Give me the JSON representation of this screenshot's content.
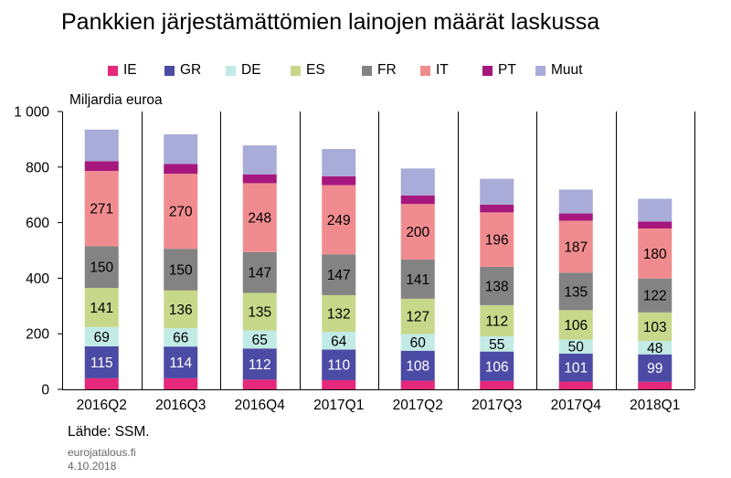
{
  "title": "Pankkien järjestämättömien lainojen määrät laskussa",
  "unit_label": "Miljardia  euroa",
  "source": "Lähde: SSM.",
  "site": "eurojatalous.fi",
  "date": "4.10.2018",
  "chart_data": {
    "type": "bar",
    "stacked": true,
    "title": "Pankkien järjestämättömien lainojen määrät laskussa",
    "ylabel": "Miljardia  euroa",
    "ylim": [
      0,
      1000
    ],
    "yticks": [
      0,
      200,
      400,
      600,
      800,
      1000
    ],
    "ytick_labels": [
      "0",
      "200",
      "400",
      "600",
      "800",
      "1 000"
    ],
    "legend_position": "top",
    "categories": [
      "2016Q2",
      "2016Q3",
      "2016Q4",
      "2017Q1",
      "2017Q2",
      "2017Q3",
      "2017Q4",
      "2018Q1"
    ],
    "series": [
      {
        "name": "IE",
        "color": "#e5287b",
        "values": [
          40,
          40,
          35,
          33,
          31,
          30,
          28,
          27
        ],
        "labeled": false
      },
      {
        "name": "GR",
        "color": "#4b4ba5",
        "values": [
          115,
          114,
          112,
          110,
          108,
          106,
          101,
          99
        ],
        "labeled": true
      },
      {
        "name": "DE",
        "color": "#c2ebe6",
        "values": [
          69,
          66,
          65,
          64,
          60,
          55,
          50,
          48
        ],
        "labeled": true
      },
      {
        "name": "ES",
        "color": "#c7d88a",
        "values": [
          141,
          136,
          135,
          132,
          127,
          112,
          106,
          103
        ],
        "labeled": true
      },
      {
        "name": "FR",
        "color": "#838383",
        "values": [
          150,
          150,
          147,
          147,
          141,
          138,
          135,
          122
        ],
        "labeled": true
      },
      {
        "name": "IT",
        "color": "#f08c8f",
        "values": [
          271,
          270,
          248,
          249,
          200,
          196,
          187,
          180
        ],
        "labeled": true
      },
      {
        "name": "PT",
        "color": "#a6177d",
        "values": [
          35,
          35,
          32,
          32,
          31,
          28,
          26,
          25
        ],
        "labeled": false
      },
      {
        "name": "Muut",
        "color": "#a9abd8",
        "values": [
          114,
          107,
          104,
          98,
          97,
          93,
          86,
          82
        ],
        "labeled": false
      }
    ]
  }
}
